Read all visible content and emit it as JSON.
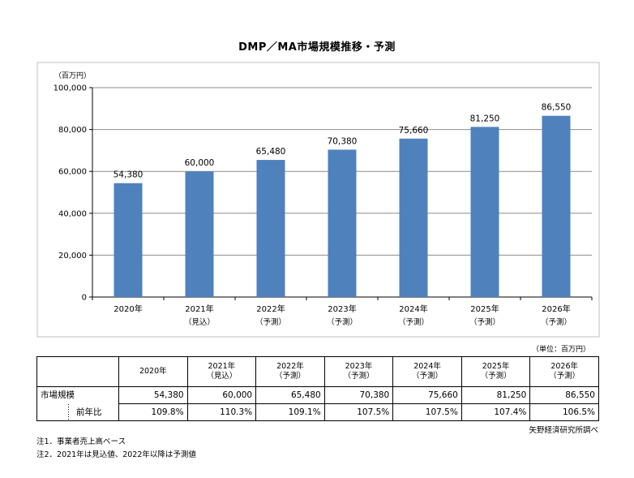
{
  "chart_data": {
    "type": "bar",
    "title": "DMP／MA市場規模推移・予測",
    "unit_label": "（百万円）",
    "categories": [
      "2020年",
      "2021年",
      "2022年",
      "2023年",
      "2024年",
      "2025年",
      "2026年"
    ],
    "category_sublabels": [
      "",
      "（見込）",
      "（予測）",
      "（予測）",
      "（予測）",
      "（予測）",
      "（予測）"
    ],
    "values": [
      54380,
      60000,
      65480,
      70380,
      75660,
      81250,
      86550
    ],
    "value_labels": [
      "54,380",
      "60,000",
      "65,480",
      "70,380",
      "75,660",
      "81,250",
      "86,550"
    ],
    "ylim": [
      0,
      100000
    ],
    "yticks": [
      0,
      20000,
      40000,
      60000,
      80000,
      100000
    ],
    "ytick_labels": [
      "0",
      "20,000",
      "40,000",
      "60,000",
      "80,000",
      "100,000"
    ],
    "grid": true,
    "bar_color": "#4f81bd"
  },
  "table": {
    "unit_note": "（単位：百万円）",
    "header": [
      {
        "year": "2020年",
        "sub": ""
      },
      {
        "year": "2021年",
        "sub": "（見込）"
      },
      {
        "year": "2022年",
        "sub": "（予測）"
      },
      {
        "year": "2023年",
        "sub": "（予測）"
      },
      {
        "year": "2024年",
        "sub": "（予測）"
      },
      {
        "year": "2025年",
        "sub": "（予測）"
      },
      {
        "year": "2026年",
        "sub": "（予測）"
      }
    ],
    "row1_label": "市場規模",
    "row1_values": [
      "54,380",
      "60,000",
      "65,480",
      "70,380",
      "75,660",
      "81,250",
      "86,550"
    ],
    "row2_label": "前年比",
    "row2_values": [
      "109.8%",
      "110.3%",
      "109.1%",
      "107.5%",
      "107.5%",
      "107.4%",
      "106.5%"
    ]
  },
  "source": "矢野経済研究所調べ",
  "notes": [
    "注1．事業者売上高ベース",
    "注2．2021年は見込値、2022年以降は予測値"
  ]
}
